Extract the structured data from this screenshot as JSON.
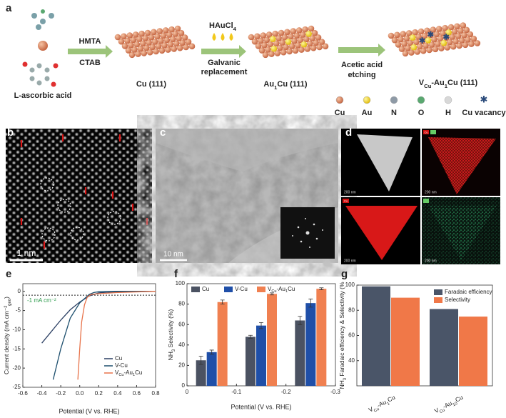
{
  "panel_labels": [
    "a",
    "b",
    "c",
    "d",
    "e",
    "f",
    "g"
  ],
  "scheme": {
    "precursor_label": "L-ascorbic acid",
    "step1": [
      "HMTA",
      "CTAB"
    ],
    "step2_reagent": [
      "HAuCl",
      "4"
    ],
    "step2": [
      "Galvanic",
      "replacement"
    ],
    "step3": [
      "Acetic acid",
      "etching"
    ],
    "products": [
      [
        "Cu (111)"
      ],
      [
        "Au",
        "1",
        "Cu (111)"
      ],
      [
        "V",
        "Cu",
        "-Au",
        "1",
        "Cu (111)"
      ]
    ],
    "legend": [
      "Cu",
      "Au",
      "N",
      "O",
      "H",
      "Cu vacancy"
    ]
  },
  "images": {
    "b": {
      "scale": "1 nm"
    },
    "c": {
      "scale": "10 nm"
    },
    "d": {
      "scales": [
        "200 nm",
        "200 nm",
        "200 nm",
        "200 nm"
      ],
      "channel_labels": [
        "Cu",
        "Cu"
      ]
    }
  },
  "chart_data": [
    {
      "type": "line",
      "xlabel": "Potential (V vs. RHE)",
      "ylabel": [
        "Current density (mA cm⁻²",
        "geo",
        ")"
      ],
      "xlim": [
        -0.6,
        0.8
      ],
      "xticks": [
        -0.6,
        -0.4,
        -0.2,
        {
          "value": 0,
          "label": "0.0"
        },
        0.2,
        0.4,
        0.6,
        0.8
      ],
      "ylim": [
        -25,
        2
      ],
      "yticks": [
        0,
        -5,
        -10,
        -15,
        -20,
        -25
      ],
      "legend": "lower right",
      "annotation": {
        "text": "-1 mA cm⁻²",
        "y": -1
      },
      "series": [
        {
          "name": "Cu",
          "color": "#2b3f63",
          "x": [
            -0.4,
            -0.3,
            -0.2,
            -0.1,
            0,
            0.1,
            0.2,
            0.3,
            0.5,
            0.8
          ],
          "values": [
            -13.5,
            -10.5,
            -7.5,
            -4.8,
            -2.8,
            -1.2,
            -0.4,
            -0.2,
            -0.1,
            0
          ]
        },
        {
          "name": "V-Cu",
          "color": "#1d4f6e",
          "x": [
            -0.28,
            -0.2,
            -0.1,
            0,
            0.1,
            0.15,
            0.2,
            0.4,
            0.8
          ],
          "values": [
            -23,
            -15,
            -7,
            -3,
            -0.8,
            -0.3,
            -0.1,
            0,
            0
          ]
        },
        {
          "name": [
            "V",
            "Cu",
            "-Au",
            "1",
            "Cu"
          ],
          "color": "#e8734a",
          "x": [
            -0.02,
            0,
            0.02,
            0.05,
            0.08,
            0.12,
            0.2,
            0.4,
            0.8
          ],
          "values": [
            -23,
            -15,
            -8,
            -3.5,
            -1.5,
            -0.8,
            -0.6,
            -0.3,
            0
          ]
        }
      ]
    },
    {
      "type": "bar",
      "xlabel": "Potential (V vs. RHE)",
      "ylabel": [
        "NH",
        "3",
        " Selectivity (%)"
      ],
      "x": [
        -0.05,
        -0.15,
        -0.25
      ],
      "xlim": [
        0,
        -0.3
      ],
      "xticks": [
        0,
        -0.1,
        -0.2,
        -0.3
      ],
      "ylim": [
        0,
        100
      ],
      "yticks": [
        0,
        20,
        40,
        60,
        80,
        100
      ],
      "legend": "upper left",
      "series": [
        {
          "name": "Cu",
          "color": "#4b5262",
          "values": [
            25,
            48,
            64
          ],
          "errors": [
            4,
            1.5,
            4
          ]
        },
        {
          "name": "V-Cu",
          "color": "#1f4fa8",
          "values": [
            33,
            59,
            81
          ],
          "errors": [
            2,
            3,
            4
          ]
        },
        {
          "name": [
            "V",
            "Cu",
            "-Au",
            "1",
            "Cu"
          ],
          "color": "#f08050",
          "values": [
            82,
            90,
            95
          ],
          "errors": [
            2,
            1,
            1
          ]
        }
      ]
    },
    {
      "type": "bar",
      "ylabel": [
        "NH",
        "3",
        " Faradaic efficiency & Selectivity (%"
      ],
      "categories": [
        [
          "V",
          "Cu",
          "-Au",
          "1",
          "Cu"
        ],
        [
          "V",
          "Cu",
          "-Au",
          "10",
          "Cu"
        ]
      ],
      "ylim": [
        20,
        100
      ],
      "yticks": [
        40,
        60,
        80,
        100
      ],
      "legend": "upper right",
      "series": [
        {
          "name": "Faradaic efficiency",
          "color": "#4a5568",
          "values": [
            99,
            81
          ]
        },
        {
          "name": "Selectivity",
          "color": "#f07848",
          "values": [
            90,
            75
          ]
        }
      ]
    }
  ]
}
